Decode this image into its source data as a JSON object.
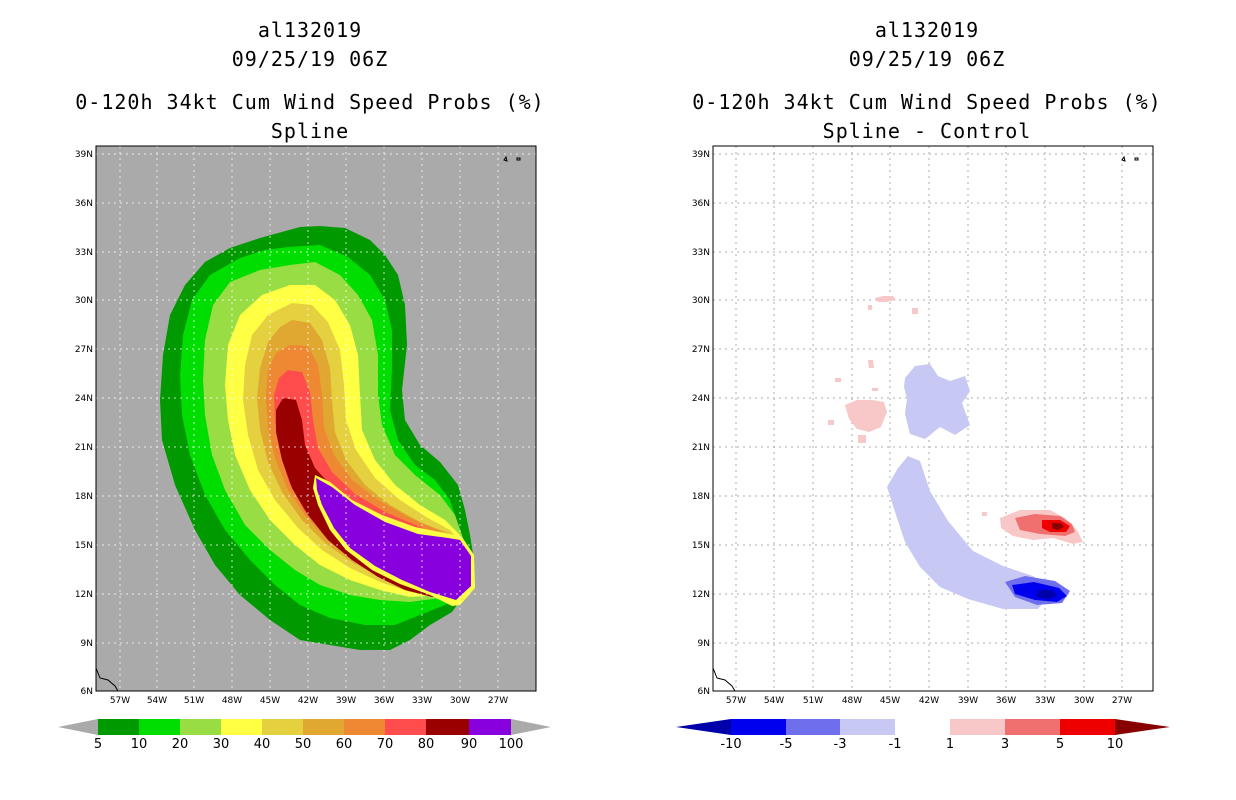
{
  "left_panel": {
    "storm_id": "al132019",
    "datetime": "09/25/19 06Z",
    "product": "0-120h 34kt Cum Wind Speed Probs (%)",
    "subtitle": "Spline"
  },
  "right_panel": {
    "storm_id": "al132019",
    "datetime": "09/25/19 06Z",
    "product": "0-120h 34kt Cum Wind Speed Probs (%)",
    "subtitle": "Spline - Control"
  },
  "chart_data": [
    {
      "type": "heatmap",
      "title": "0-120h 34kt Cum Wind Speed Probs (%)",
      "subtitle": "Spline",
      "x_axis": {
        "label": "",
        "range": [
          -59,
          -26
        ],
        "ticks": [
          "57W",
          "54W",
          "51W",
          "48W",
          "45W",
          "42W",
          "39W",
          "36W",
          "33W",
          "30W",
          "27W"
        ]
      },
      "y_axis": {
        "label": "",
        "range": [
          6,
          39.5
        ],
        "ticks": [
          "6N",
          "9N",
          "12N",
          "15N",
          "18N",
          "21N",
          "24N",
          "27N",
          "30N",
          "33N",
          "36N",
          "39N"
        ]
      },
      "grid": true,
      "colorbar": {
        "levels": [
          "5",
          "10",
          "20",
          "30",
          "40",
          "50",
          "60",
          "70",
          "80",
          "90",
          "100"
        ],
        "colors": [
          "#009900",
          "#00dd00",
          "#99dd44",
          "#ffff44",
          "#e5d040",
          "#e0a830",
          "#ee8833",
          "#ff4d4d",
          "#990000",
          "#8800dd"
        ]
      },
      "background_color": "#aaaaaa"
    },
    {
      "type": "heatmap",
      "title": "0-120h 34kt Cum Wind Speed Probs (%)",
      "subtitle": "Spline - Control",
      "x_axis": {
        "label": "",
        "range": [
          -59,
          -26
        ],
        "ticks": [
          "57W",
          "54W",
          "51W",
          "48W",
          "45W",
          "42W",
          "39W",
          "36W",
          "33W",
          "30W",
          "27W"
        ]
      },
      "y_axis": {
        "label": "",
        "range": [
          6,
          39.5
        ],
        "ticks": [
          "6N",
          "9N",
          "12N",
          "15N",
          "18N",
          "21N",
          "24N",
          "27N",
          "30N",
          "33N",
          "36N",
          "39N"
        ]
      },
      "grid": true,
      "colorbar": {
        "levels": [
          "-10",
          "-5",
          "-3",
          "-1",
          "1",
          "3",
          "5",
          "10"
        ],
        "colors": [
          "#0000aa",
          "#0000ee",
          "#6f6fee",
          "#c8c8f4",
          "#ffffff",
          "#f8c8c8",
          "#f07070",
          "#ee0000",
          "#880000"
        ]
      },
      "background_color": "#ffffff"
    }
  ]
}
